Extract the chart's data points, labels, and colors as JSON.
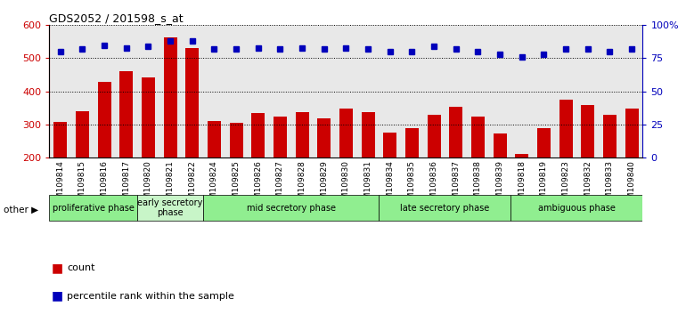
{
  "title": "GDS2052 / 201598_s_at",
  "categories": [
    "GSM109814",
    "GSM109815",
    "GSM109816",
    "GSM109817",
    "GSM109820",
    "GSM109821",
    "GSM109822",
    "GSM109824",
    "GSM109825",
    "GSM109826",
    "GSM109827",
    "GSM109828",
    "GSM109829",
    "GSM109830",
    "GSM109831",
    "GSM109834",
    "GSM109835",
    "GSM109836",
    "GSM109837",
    "GSM109838",
    "GSM109839",
    "GSM109818",
    "GSM109819",
    "GSM109823",
    "GSM109832",
    "GSM109833",
    "GSM109840"
  ],
  "bar_values": [
    307,
    340,
    430,
    462,
    443,
    562,
    530,
    310,
    305,
    335,
    325,
    337,
    318,
    348,
    338,
    275,
    290,
    330,
    353,
    325,
    272,
    210,
    290,
    375,
    358,
    328,
    347
  ],
  "dot_values": [
    80,
    82,
    85,
    83,
    84,
    88,
    88,
    82,
    82,
    83,
    82,
    83,
    82,
    83,
    82,
    80,
    80,
    84,
    82,
    80,
    78,
    76,
    78,
    82,
    82,
    80,
    82
  ],
  "phases": [
    {
      "label": "proliferative phase",
      "start": 0,
      "end": 4,
      "color": "#90EE90"
    },
    {
      "label": "early secretory\nphase",
      "start": 4,
      "end": 7,
      "color": "#c8f5c8"
    },
    {
      "label": "mid secretory phase",
      "start": 7,
      "end": 15,
      "color": "#90EE90"
    },
    {
      "label": "late secretory phase",
      "start": 15,
      "end": 21,
      "color": "#90EE90"
    },
    {
      "label": "ambiguous phase",
      "start": 21,
      "end": 27,
      "color": "#90EE90"
    }
  ],
  "bar_color": "#cc0000",
  "dot_color": "#0000bb",
  "ylim_left": [
    200,
    600
  ],
  "ylim_right": [
    0,
    100
  ],
  "yticks_left": [
    200,
    300,
    400,
    500,
    600
  ],
  "yticks_right": [
    0,
    25,
    50,
    75,
    100
  ],
  "bg_color": "#e8e8e8",
  "other_label": "other"
}
